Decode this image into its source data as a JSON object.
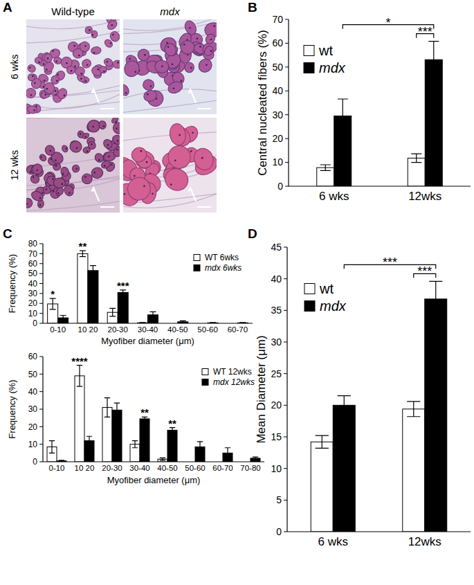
{
  "panel_labels": [
    "A",
    "B",
    "C",
    "D"
  ],
  "panel_a": {
    "columns": [
      "Wild-type",
      "mdx"
    ],
    "rows": [
      "6 wks",
      "12 wks"
    ]
  },
  "chart_data": [
    {
      "type": "bar",
      "ylabel": "Central nucleated fibers (%)",
      "categories": [
        "6 wks",
        "12wks"
      ],
      "series": [
        {
          "name": "wt",
          "color": "#ffffff",
          "values": [
            7.8,
            11.8
          ],
          "errors": [
            1.2,
            1.8
          ]
        },
        {
          "name": "mdx",
          "color": "#000000",
          "values": [
            29.5,
            53.1
          ],
          "errors": [
            7.1,
            7.7
          ]
        }
      ],
      "ylim": [
        0,
        70
      ],
      "yticks": [
        0,
        10,
        20,
        30,
        40,
        50,
        60,
        70
      ],
      "legend": "upper left",
      "annotations": [
        {
          "text": "***",
          "series": [
            0,
            1
          ],
          "categories": [
            1,
            1
          ]
        },
        {
          "text": "*",
          "series": [
            1,
            1
          ],
          "categories": [
            0,
            1
          ]
        }
      ]
    },
    {
      "type": "bar",
      "ylabel": "Frequency (%)",
      "xlabel": "Myofiber diameter (μm)",
      "categories": [
        "0-10",
        "10 20",
        "20-30",
        "30-40",
        "40-50",
        "50-60",
        "60-70"
      ],
      "series": [
        {
          "name": "WT 6wks",
          "color": "#ffffff",
          "values": [
            19.5,
            70,
            11,
            0.5,
            0,
            0,
            0
          ],
          "errors": [
            5.5,
            3,
            4,
            0.3,
            0,
            0,
            0
          ]
        },
        {
          "name": "mdx 6wks",
          "color": "#000000",
          "values": [
            5.5,
            53,
            31,
            8.5,
            1.5,
            0.5,
            0.5
          ],
          "errors": [
            2.5,
            5,
            2.5,
            3,
            1,
            0.3,
            0.3
          ]
        }
      ],
      "ylim": [
        0,
        80
      ],
      "yticks": [
        0,
        10,
        20,
        30,
        40,
        50,
        60,
        70,
        80
      ],
      "legend": "upper right",
      "significance": [
        "*",
        "**",
        "***",
        null,
        null,
        null,
        null
      ]
    },
    {
      "type": "bar",
      "ylabel": "Frequency (%)",
      "xlabel": "Myofiber diameter (μm)",
      "categories": [
        "0-10",
        "10 20",
        "20-30",
        "30-40",
        "40-50",
        "50-60",
        "60-70",
        "70-80"
      ],
      "series": [
        {
          "name": "WT 12wks",
          "color": "#ffffff",
          "values": [
            8.5,
            49,
            31,
            10,
            1.5,
            0,
            0,
            0
          ],
          "errors": [
            3.5,
            6,
            5.5,
            2,
            0.7,
            0,
            0,
            0
          ]
        },
        {
          "name": "mdx 12wks",
          "color": "#000000",
          "values": [
            0.5,
            12,
            29.5,
            24.5,
            18,
            8.5,
            5,
            2
          ],
          "errors": [
            0.3,
            2.5,
            4,
            1,
            1.5,
            3,
            3,
            0.7
          ]
        }
      ],
      "ylim": [
        0,
        60
      ],
      "yticks": [
        0,
        10,
        20,
        30,
        40,
        50,
        60
      ],
      "legend": "upper right",
      "significance": [
        null,
        "****",
        null,
        "**",
        "**",
        null,
        null,
        null
      ]
    },
    {
      "type": "bar",
      "ylabel": "Mean Diameter (μm)",
      "categories": [
        "6 wks",
        "12wks"
      ],
      "series": [
        {
          "name": "wt",
          "color": "#ffffff",
          "values": [
            14.2,
            19.4
          ],
          "errors": [
            1,
            1.2
          ]
        },
        {
          "name": "mdx",
          "color": "#000000",
          "values": [
            20,
            36.8
          ],
          "errors": [
            1.5,
            2.8
          ]
        }
      ],
      "ylim": [
        0,
        45
      ],
      "yticks": [
        0,
        5,
        10,
        15,
        20,
        25,
        30,
        35,
        40,
        45
      ],
      "legend": "upper left",
      "annotations": [
        {
          "text": "***",
          "series": [
            0,
            1
          ],
          "categories": [
            1,
            1
          ]
        },
        {
          "text": "***",
          "series": [
            1,
            1
          ],
          "categories": [
            0,
            1
          ]
        }
      ]
    }
  ]
}
